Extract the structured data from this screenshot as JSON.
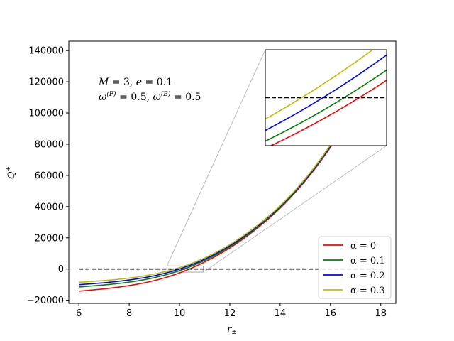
{
  "chart_data": {
    "type": "line",
    "xlabel": "r±",
    "ylabel": "Q+",
    "xlim": [
      5.6,
      18.6
    ],
    "ylim": [
      -22000,
      146000
    ],
    "xticks": [
      6,
      8,
      10,
      12,
      14,
      16,
      18
    ],
    "yticks": [
      -20000,
      0,
      20000,
      40000,
      60000,
      80000,
      100000,
      120000,
      140000
    ],
    "xtick_labels": [
      "6",
      "8",
      "10",
      "12",
      "14",
      "16",
      "18"
    ],
    "ytick_labels": [
      "−20000",
      "0",
      "20000",
      "40000",
      "60000",
      "80000",
      "100000",
      "120000",
      "140000"
    ],
    "annotation_line1": "M = 3, e = 0.1",
    "annotation_line2": "ω(F) = 0.5, ω(B) = 0.5",
    "reference_line": {
      "y": 0,
      "style": "dashed",
      "color": "#000000"
    },
    "x": [
      6,
      7,
      8,
      9,
      10,
      11,
      12,
      13,
      14,
      15,
      16,
      17,
      18
    ],
    "series": [
      {
        "name": "α = 0",
        "color": "#ff0000",
        "values": [
          -14200,
          -12700,
          -10600,
          -7400,
          -2500,
          4500,
          13500,
          25000,
          39000,
          56500,
          78000,
          104000,
          134000
        ]
      },
      {
        "name": "α = 0.1",
        "color": "#008000",
        "values": [
          -11500,
          -10200,
          -8400,
          -5500,
          -1000,
          5500,
          14300,
          25600,
          39500,
          57000,
          78600,
          104600,
          134800
        ]
      },
      {
        "name": "α = 0.2",
        "color": "#0000ff",
        "values": [
          -10000,
          -8800,
          -7000,
          -4300,
          0,
          6300,
          15000,
          26200,
          40000,
          57400,
          79000,
          105000,
          135300
        ]
      },
      {
        "name": "α = 0.3",
        "color": "#bfbf00",
        "values": [
          -8500,
          -7400,
          -5800,
          -3200,
          900,
          7100,
          15700,
          26800,
          40600,
          58000,
          79600,
          105600,
          135900
        ]
      }
    ],
    "inset": {
      "xlim": [
        10.55,
        10.95
      ],
      "ylim": [
        -2000,
        2000
      ],
      "indicator_xlim": [
        9.5,
        10.95
      ],
      "indicator_ylim": [
        -2000,
        2000
      ]
    },
    "legend_placement": "lower right",
    "grid": false
  }
}
